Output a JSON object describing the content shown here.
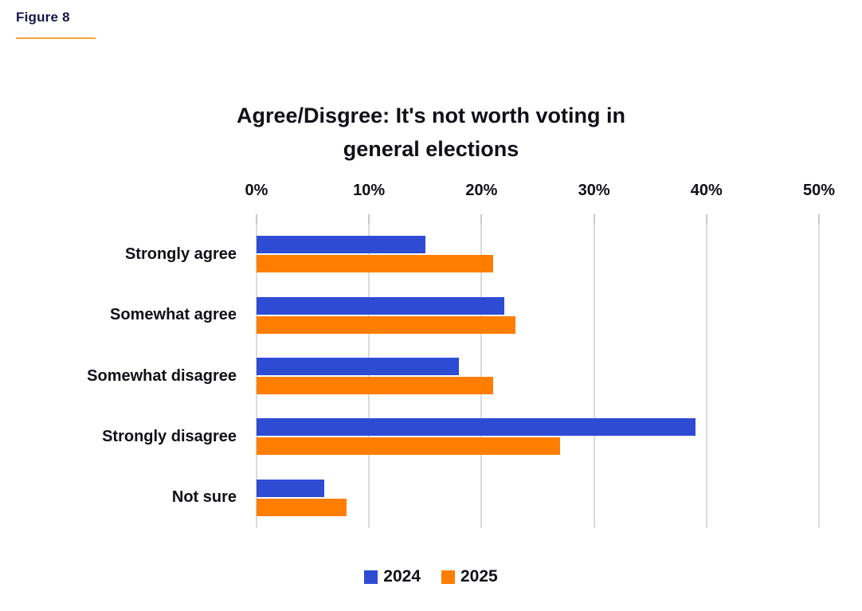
{
  "figure": {
    "label": "Figure 8"
  },
  "chart_data": {
    "type": "bar",
    "orientation": "horizontal",
    "title": "Agree/Disgree: It's not worth voting in general elections",
    "title_lines": [
      "Agree/Disgree: It's not worth voting in",
      "general elections"
    ],
    "categories": [
      "Strongly agree",
      "Somewhat agree",
      "Somewhat disagree",
      "Strongly disagree",
      "Not sure"
    ],
    "series": [
      {
        "name": "2024",
        "color": "#2e4bd4",
        "values": [
          15,
          22,
          18,
          39,
          6
        ]
      },
      {
        "name": "2025",
        "color": "#ff7e00",
        "values": [
          21,
          23,
          21,
          27,
          8
        ]
      }
    ],
    "x_axis": {
      "ticks": [
        "0%",
        "10%",
        "20%",
        "30%",
        "40%",
        "50%"
      ],
      "min": 0,
      "max": 50,
      "unit": "%"
    },
    "grid": true,
    "legend_position": "bottom"
  },
  "colors": {
    "bar_2024": "#2e4bd4",
    "bar_2025": "#ff7e00",
    "accent_underline": "#f1a33f",
    "gridline": "#dbdbdb",
    "tick_mark": "#c9c9c9",
    "text": "#101016",
    "figure_label_text": "#17174a",
    "background": "#ffffff"
  }
}
